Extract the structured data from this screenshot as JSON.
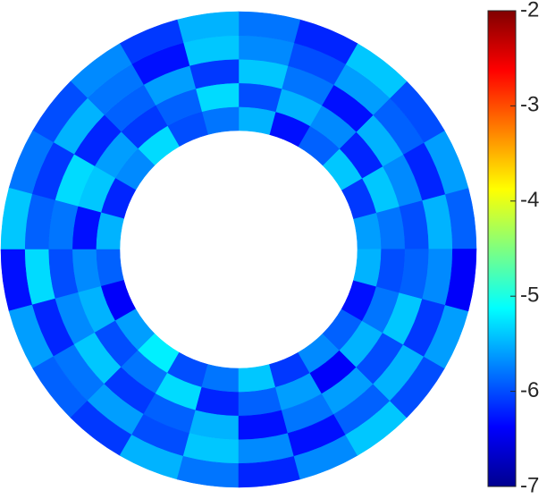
{
  "chart_data": {
    "type": "polar-heatmap",
    "colormap": "jet",
    "clim": [
      -7,
      -2
    ],
    "cticks": [
      -2,
      -3,
      -4,
      -5,
      -6,
      -7
    ],
    "values": [
      [
        -5.6,
        -6.1,
        -5.4,
        -5.9,
        -6.3,
        -5.5,
        -5.8,
        -6.0,
        -5.3,
        -5.7,
        -6.2,
        -5.5,
        -5.9,
        -6.4,
        -5.6,
        -5.2,
        -6.0,
        -5.8,
        -5.4,
        -6.1,
        -5.7,
        -5.9,
        -6.3,
        -5.5
      ],
      [
        -5.8,
        -5.4,
        -6.2,
        -5.7,
        -5.5,
        -6.0,
        -5.3,
        -5.9,
        -6.1,
        -5.6,
        -5.4,
        -6.3,
        -5.7,
        -5.5,
        -6.0,
        -5.8,
        -5.3,
        -6.2,
        -5.9,
        -5.6,
        -6.4,
        -5.5,
        -5.8,
        -6.0
      ],
      [
        -6.0,
        -5.7,
        -5.5,
        -6.3,
        -5.8,
        -5.4,
        -6.1,
        -5.6,
        -5.9,
        -6.2,
        -5.3,
        -5.8,
        -6.0,
        -5.7,
        -5.4,
        -6.1,
        -5.9,
        -5.5,
        -6.3,
        -5.8,
        -5.6,
        -6.0,
        -5.4,
        -5.9
      ],
      [
        -5.5,
        -6.2,
        -5.9,
        -5.6,
        -6.0,
        -5.7,
        -5.4,
        -6.3,
        -5.8,
        -5.5,
        -6.1,
        -5.9,
        -5.3,
        -6.2,
        -5.8,
        -5.6,
        -6.0,
        -5.4,
        -5.7,
        -6.3,
        -5.9,
        -5.5,
        -6.1,
        -5.7
      ],
      [
        -5.9,
        -5.6,
        -6.0,
        -5.4,
        -6.2,
        -5.8,
        -5.5,
        -6.1,
        -5.7,
        -6.0,
        -5.8,
        -5.4,
        -6.3,
        -5.6,
        -5.9,
        -6.1,
        -5.5,
        -5.8,
        -6.2,
        -5.7,
        -5.4,
        -6.0,
        -5.6,
        -6.4
      ]
    ]
  }
}
